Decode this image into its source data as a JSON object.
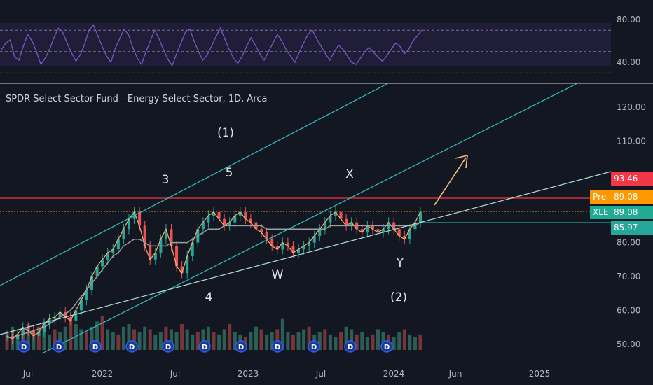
{
  "instrument": {
    "title": "SPDR Select Sector Fund - Energy Select Sector, 1D, Arca"
  },
  "price_badges": [
    {
      "tag": "",
      "value": "93.46",
      "color": "#f23645"
    },
    {
      "tag": "Pre",
      "value": "89.08",
      "color": "#ff9800"
    },
    {
      "tag": "XLE",
      "value": "89.08",
      "color": "#22ab94"
    },
    {
      "tag": "",
      "value": "85.97",
      "color": "#26a69a"
    }
  ],
  "wave_labels": [
    "(1)",
    "3",
    "5",
    "X",
    "4",
    "W",
    "Y",
    "(2)"
  ],
  "chart_data": [
    {
      "type": "line",
      "panel": "rsi",
      "y_ticks": [
        "80.00",
        "40.00"
      ],
      "ylim": [
        25,
        95
      ],
      "bands": [
        30,
        50,
        70
      ],
      "series": [
        {
          "values": [
            52,
            58,
            61,
            45,
            42,
            55,
            66,
            60,
            50,
            38,
            44,
            52,
            63,
            72,
            68,
            58,
            49,
            41,
            47,
            57,
            70,
            75,
            65,
            55,
            46,
            40,
            53,
            62,
            71,
            66,
            54,
            44,
            38,
            50,
            60,
            70,
            62,
            52,
            43,
            37,
            48,
            58,
            68,
            71,
            60,
            50,
            42,
            47,
            55,
            64,
            72,
            62,
            52,
            44,
            39,
            46,
            55,
            63,
            56,
            48,
            42,
            50,
            58,
            66,
            60,
            52,
            46,
            40,
            49,
            58,
            66,
            70,
            62,
            55,
            48,
            42,
            50,
            56,
            52,
            46,
            40,
            38,
            44,
            50,
            54,
            49,
            45,
            41,
            46,
            52,
            58,
            55,
            48,
            52,
            60,
            65,
            70
          ]
        }
      ]
    },
    {
      "type": "line",
      "panel": "price",
      "x_ticks": [
        "Jul",
        "2022",
        "Jul",
        "2023",
        "Jul",
        "2024",
        "Jun",
        "2025"
      ],
      "y_ticks": [
        "120.00",
        "110.00",
        "100.00",
        "80.00",
        "70.00",
        "60.00",
        "50.00"
      ],
      "ylim": [
        46,
        126
      ],
      "series": [
        {
          "values": [
            52.5,
            51.5,
            53,
            55,
            54,
            52.5,
            53.5,
            56,
            57.5,
            58,
            59.5,
            58,
            57,
            60,
            63,
            66,
            70,
            73,
            75,
            77,
            78,
            81,
            84,
            87,
            89,
            85,
            79,
            75,
            77,
            81,
            84,
            79,
            73,
            71,
            76,
            80,
            84,
            86,
            88,
            89,
            87,
            85,
            86,
            88,
            89,
            87,
            86,
            84,
            83,
            81,
            79,
            78,
            80,
            79,
            77,
            78,
            79,
            80,
            82,
            84,
            86,
            88,
            89,
            87,
            85,
            86,
            84,
            83,
            85,
            84,
            83,
            84,
            86,
            84,
            82,
            81,
            84,
            86,
            89
          ]
        },
        {
          "values": [
            52,
            52,
            52.5,
            53,
            53.5,
            54,
            54.5,
            55,
            56,
            57,
            58,
            59,
            60,
            62,
            64,
            66,
            68,
            70,
            72,
            74,
            76,
            77,
            79,
            80,
            81,
            81,
            80,
            79,
            79,
            79,
            79,
            80,
            80,
            80,
            80,
            81,
            82,
            83,
            84,
            84,
            84,
            85,
            85,
            85,
            85,
            85,
            85,
            85,
            85,
            84,
            84,
            84,
            84,
            84,
            84,
            84,
            84,
            84,
            84,
            84,
            84,
            85,
            85,
            85,
            85,
            85,
            85,
            85,
            85,
            85,
            85,
            85,
            85,
            85,
            85,
            85,
            85,
            85,
            86
          ]
        }
      ],
      "volume": [
        7,
        9,
        6,
        8,
        10,
        7,
        9,
        11,
        6,
        8,
        7,
        9,
        12,
        10,
        8,
        7,
        9,
        11,
        13,
        8,
        7,
        6,
        9,
        10,
        8,
        7,
        9,
        8,
        6,
        7,
        9,
        8,
        7,
        10,
        8,
        6,
        7,
        8,
        9,
        7,
        6,
        8,
        10,
        7,
        6,
        5,
        7,
        9,
        8,
        6,
        7,
        8,
        12,
        7,
        6,
        7,
        8,
        9,
        6,
        7,
        8,
        6,
        5,
        7,
        9,
        8,
        6,
        7,
        5,
        6,
        8,
        7,
        6,
        5,
        7,
        8,
        6,
        5,
        6
      ],
      "lines": [
        {
          "label": "93.46",
          "value": 93.46
        },
        {
          "label": "89.08",
          "value": 89.08
        },
        {
          "label": "85.97",
          "value": 85.97
        }
      ]
    }
  ]
}
